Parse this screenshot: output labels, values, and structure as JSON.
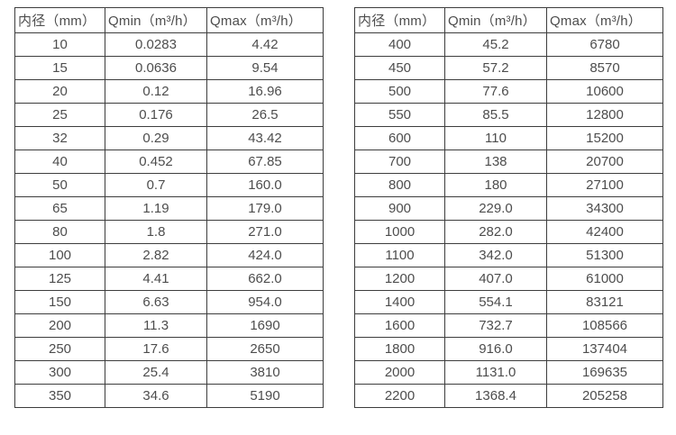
{
  "tables": [
    {
      "name": "flow-rate-table-small-diameters",
      "headers": [
        "内径（mm）",
        "Qmin（m³/h）",
        "Qmax（m³/h）"
      ],
      "rows": [
        [
          "10",
          "0.0283",
          "4.42"
        ],
        [
          "15",
          "0.0636",
          "9.54"
        ],
        [
          "20",
          "0.12",
          "16.96"
        ],
        [
          "25",
          "0.176",
          "26.5"
        ],
        [
          "32",
          "0.29",
          "43.42"
        ],
        [
          "40",
          "0.452",
          "67.85"
        ],
        [
          "50",
          "0.7",
          "160.0"
        ],
        [
          "65",
          "1.19",
          "179.0"
        ],
        [
          "80",
          "1.8",
          "271.0"
        ],
        [
          "100",
          "2.82",
          "424.0"
        ],
        [
          "125",
          "4.41",
          "662.0"
        ],
        [
          "150",
          "6.63",
          "954.0"
        ],
        [
          "200",
          "11.3",
          "1690"
        ],
        [
          "250",
          "17.6",
          "2650"
        ],
        [
          "300",
          "25.4",
          "3810"
        ],
        [
          "350",
          "34.6",
          "5190"
        ]
      ]
    },
    {
      "name": "flow-rate-table-large-diameters",
      "headers": [
        "内径（mm）",
        "Qmin（m³/h）",
        "Qmax（m³/h）"
      ],
      "rows": [
        [
          "400",
          "45.2",
          "6780"
        ],
        [
          "450",
          "57.2",
          "8570"
        ],
        [
          "500",
          "77.6",
          "10600"
        ],
        [
          "550",
          "85.5",
          "12800"
        ],
        [
          "600",
          "110",
          "15200"
        ],
        [
          "700",
          "138",
          "20700"
        ],
        [
          "800",
          "180",
          "27100"
        ],
        [
          "900",
          "229.0",
          "34300"
        ],
        [
          "1000",
          "282.0",
          "42400"
        ],
        [
          "1100",
          "342.0",
          "51300"
        ],
        [
          "1200",
          "407.0",
          "61000"
        ],
        [
          "1400",
          "554.1",
          "83121"
        ],
        [
          "1600",
          "732.7",
          "108566"
        ],
        [
          "1800",
          "916.0",
          "137404"
        ],
        [
          "2000",
          "1131.0",
          "169635"
        ],
        [
          "2200",
          "1368.4",
          "205258"
        ]
      ]
    }
  ],
  "colors": {
    "border": "#3d3d3d",
    "text": "#4d4d4d",
    "background": "#ffffff"
  }
}
